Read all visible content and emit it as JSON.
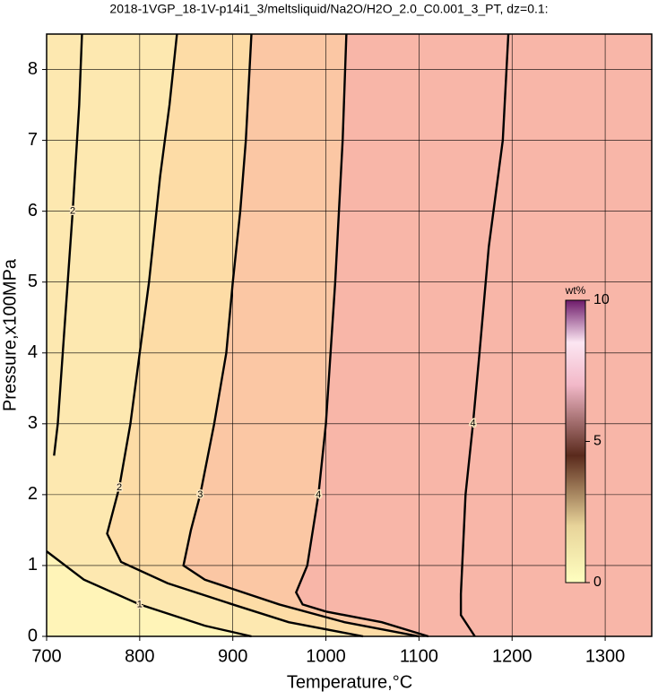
{
  "chart_data": {
    "type": "contour",
    "title": "2018-1VGP_18-1V-p14i1_3/meltsliquid/Na2O/H2O_2.0_C0.001_3_PT, dz=0.1:",
    "x_label": "Temperature,°C",
    "y_label": "Pressure,x100MPa",
    "xlim": [
      700,
      1350
    ],
    "ylim": [
      0,
      8.5
    ],
    "xticks": [
      700,
      800,
      900,
      1000,
      1100,
      1200,
      1300
    ],
    "yticks": [
      0,
      1,
      2,
      3,
      4,
      5,
      6,
      7,
      8
    ],
    "grid": true,
    "background_color": "#f8b6a8",
    "contours": [
      {
        "level": 4,
        "color": "#fbc7a4",
        "x": [
          1110,
          1060,
          1000,
          975,
          968,
          980,
          992,
          1000,
          1005,
          1010,
          1014,
          1018,
          1022
        ],
        "y": [
          0,
          0.2,
          0.35,
          0.45,
          0.62,
          1.0,
          2,
          3,
          4,
          5,
          6,
          7,
          8.5
        ]
      },
      {
        "level": 3,
        "color": "#fddca6",
        "x": [
          1100,
          1080,
          1020,
          950,
          870,
          847,
          855,
          865,
          880,
          893,
          900,
          908,
          914,
          920
        ],
        "y": [
          0,
          0.05,
          0.2,
          0.45,
          0.8,
          1.0,
          1.5,
          2,
          3,
          4,
          5,
          6,
          7,
          8.5
        ]
      },
      {
        "level": 2,
        "color": "#fde8b0",
        "x": [
          1040,
          1020,
          960,
          900,
          830,
          780,
          765,
          778,
          790,
          800,
          810,
          822,
          832,
          840
        ],
        "y": [
          0,
          0.05,
          0.2,
          0.45,
          0.75,
          1.05,
          1.45,
          2.1,
          3,
          4,
          5,
          6.5,
          7.5,
          8.5
        ]
      },
      {
        "level": 1,
        "color": "#fff4b8",
        "x": [
          920,
          870,
          800,
          740,
          700
        ],
        "y": [
          0,
          0.15,
          0.45,
          0.8,
          1.2
        ]
      },
      {
        "level": 2,
        "x": [
          708,
          712,
          720,
          728,
          735,
          738
        ],
        "y": [
          2.55,
          3,
          4.5,
          6,
          7.5,
          8.5
        ]
      },
      {
        "level": 4,
        "x": [
          1160,
          1145,
          1145,
          1150,
          1158,
          1165,
          1175,
          1190,
          1196
        ],
        "y": [
          0,
          0.3,
          0.6,
          2,
          3,
          4,
          5.5,
          7,
          8.5
        ]
      }
    ],
    "colorbar": {
      "label": "wt%",
      "lim": [
        0,
        10
      ],
      "ticks": [
        0,
        5,
        10
      ]
    }
  }
}
